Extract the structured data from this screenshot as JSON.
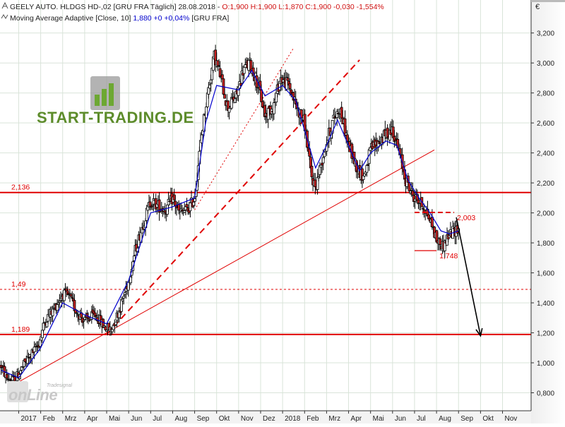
{
  "header": {
    "line1": "GEELY AUTO. HLDGS  HD-,02 [GRU FRA  Täglich] 28.08.2018 - ",
    "ohlc": "O:1,900 H:1,900 L:1,870 C:1,900 -0,030 -1,554%",
    "line2_prefix": "Moving Average Adaptive [Close, 10] ",
    "line2_value": "1,880 +0 +0,04%",
    "line2_suffix": " [GRU FRA]"
  },
  "brand": {
    "name": "START-TRADING.DE",
    "footer_main": "onLine",
    "footer_small": "Tradesignal"
  },
  "currency_symbol": "€",
  "colors": {
    "candle_up": "#ffffff",
    "candle_down": "#cc2222",
    "candle_outline": "#000000",
    "moving_average": "#0000cc",
    "level_line": "#e00000",
    "arrow": "#000000",
    "grid": "#d9e4d9",
    "brand_green": "#5d8c2b",
    "brand_dark": "#555555"
  },
  "chart_data": {
    "type": "candlestick",
    "instrument": "GEELY AUTO. HLDGS  HD-,02",
    "exchange": "GRU FRA",
    "interval": "Täglich",
    "y_axis": {
      "position": "right",
      "ticks": [
        0.8,
        1.0,
        1.2,
        1.4,
        1.6,
        1.8,
        2.0,
        2.2,
        2.4,
        2.6,
        2.8,
        3.0,
        3.2
      ],
      "tick_labels": [
        "0,800",
        "1,000",
        "1,200",
        "1,400",
        "1,600",
        "1,800",
        "2,000",
        "2,200",
        "2,400",
        "2,600",
        "2,800",
        "3,000",
        "3,200"
      ],
      "ylim": [
        0.68,
        3.42
      ]
    },
    "x_axis": {
      "labels": [
        {
          "text": "2017",
          "t": 0.0
        },
        {
          "text": "Feb",
          "t": 1.0
        },
        {
          "text": "Mrz",
          "t": 2.0
        },
        {
          "text": "Apr",
          "t": 3.0
        },
        {
          "text": "Mai",
          "t": 4.0
        },
        {
          "text": "Jun",
          "t": 5.0
        },
        {
          "text": "Jul",
          "t": 6.0
        },
        {
          "text": "Aug",
          "t": 7.0
        },
        {
          "text": "Sep",
          "t": 8.0
        },
        {
          "text": "Okt",
          "t": 9.0
        },
        {
          "text": "Nov",
          "t": 10.0
        },
        {
          "text": "Dez",
          "t": 11.0
        },
        {
          "text": "2018",
          "t": 12.0
        },
        {
          "text": "Feb",
          "t": 13.0
        },
        {
          "text": "Mrz",
          "t": 14.0
        },
        {
          "text": "Apr",
          "t": 15.0
        },
        {
          "text": "Mai",
          "t": 16.0
        },
        {
          "text": "Jun",
          "t": 17.0
        },
        {
          "text": "Jul",
          "t": 18.0
        },
        {
          "text": "Aug",
          "t": 19.0
        },
        {
          "text": "Sep",
          "t": 20.0
        },
        {
          "text": "Okt",
          "t": 21.0
        },
        {
          "text": "Nov",
          "t": 22.0
        }
      ],
      "xlim": [
        -0.85,
        23.3
      ]
    },
    "price_path": [
      [
        -0.8,
        0.98
      ],
      [
        -0.55,
        0.9
      ],
      [
        -0.2,
        0.88
      ],
      [
        0.3,
        1.0
      ],
      [
        0.9,
        1.12
      ],
      [
        1.2,
        1.28
      ],
      [
        1.6,
        1.36
      ],
      [
        2.0,
        1.46
      ],
      [
        2.3,
        1.44
      ],
      [
        2.6,
        1.35
      ],
      [
        3.0,
        1.28
      ],
      [
        3.5,
        1.32
      ],
      [
        3.9,
        1.24
      ],
      [
        4.2,
        1.22
      ],
      [
        4.6,
        1.36
      ],
      [
        5.0,
        1.55
      ],
      [
        5.3,
        1.75
      ],
      [
        5.6,
        1.9
      ],
      [
        6.0,
        2.08
      ],
      [
        6.3,
        2.05
      ],
      [
        6.7,
        2.02
      ],
      [
        7.0,
        2.1
      ],
      [
        7.3,
        2.0
      ],
      [
        7.7,
        2.02
      ],
      [
        8.0,
        2.1
      ],
      [
        8.3,
        2.5
      ],
      [
        8.6,
        2.8
      ],
      [
        8.9,
        3.05
      ],
      [
        9.2,
        2.9
      ],
      [
        9.5,
        2.7
      ],
      [
        9.9,
        2.78
      ],
      [
        10.2,
        2.95
      ],
      [
        10.5,
        3.0
      ],
      [
        10.9,
        2.85
      ],
      [
        11.2,
        2.65
      ],
      [
        11.6,
        2.72
      ],
      [
        11.9,
        2.9
      ],
      [
        12.3,
        2.85
      ],
      [
        12.6,
        2.72
      ],
      [
        13.0,
        2.6
      ],
      [
        13.3,
        2.25
      ],
      [
        13.5,
        2.17
      ],
      [
        13.9,
        2.42
      ],
      [
        14.3,
        2.62
      ],
      [
        14.6,
        2.7
      ],
      [
        15.0,
        2.45
      ],
      [
        15.4,
        2.3
      ],
      [
        15.7,
        2.24
      ],
      [
        16.0,
        2.42
      ],
      [
        16.4,
        2.48
      ],
      [
        16.7,
        2.52
      ],
      [
        17.0,
        2.56
      ],
      [
        17.3,
        2.4
      ],
      [
        17.6,
        2.22
      ],
      [
        17.9,
        2.12
      ],
      [
        18.2,
        2.08
      ],
      [
        18.5,
        2.02
      ],
      [
        18.8,
        1.92
      ],
      [
        19.0,
        1.82
      ],
      [
        19.3,
        1.78
      ],
      [
        19.5,
        1.84
      ],
      [
        19.8,
        1.88
      ],
      [
        20.0,
        1.9
      ]
    ],
    "moving_average": {
      "name": "Moving Average Adaptive [Close, 10]",
      "last_value": 1.88,
      "points": [
        [
          -0.8,
          0.95
        ],
        [
          0.0,
          0.9
        ],
        [
          1.0,
          1.1
        ],
        [
          2.0,
          1.4
        ],
        [
          3.0,
          1.32
        ],
        [
          4.0,
          1.26
        ],
        [
          5.0,
          1.55
        ],
        [
          6.0,
          2.0
        ],
        [
          7.0,
          2.04
        ],
        [
          8.0,
          2.1
        ],
        [
          8.5,
          2.6
        ],
        [
          9.0,
          2.85
        ],
        [
          10.0,
          2.82
        ],
        [
          10.6,
          2.95
        ],
        [
          11.2,
          2.78
        ],
        [
          12.0,
          2.85
        ],
        [
          12.6,
          2.75
        ],
        [
          13.0,
          2.55
        ],
        [
          13.5,
          2.3
        ],
        [
          14.0,
          2.45
        ],
        [
          14.5,
          2.62
        ],
        [
          15.0,
          2.45
        ],
        [
          15.5,
          2.28
        ],
        [
          16.0,
          2.4
        ],
        [
          16.7,
          2.48
        ],
        [
          17.2,
          2.45
        ],
        [
          17.7,
          2.22
        ],
        [
          18.2,
          2.1
        ],
        [
          18.7,
          2.0
        ],
        [
          19.2,
          1.88
        ],
        [
          19.6,
          1.86
        ],
        [
          20.0,
          1.88
        ]
      ]
    },
    "horizontal_levels": [
      {
        "label": "2,136",
        "value": 2.136,
        "style": "solid",
        "width": 2
      },
      {
        "label": "1,49",
        "value": 1.49,
        "style": "dotted",
        "width": 1
      },
      {
        "label": "1,189",
        "value": 1.189,
        "style": "solid",
        "width": 2
      }
    ],
    "segment_levels": [
      {
        "label": "2,003",
        "value": 2.003,
        "t_start": 18.0,
        "t_end": 19.8,
        "style": "dashed"
      },
      {
        "label": "1,748",
        "value": 1.748,
        "t_start": 18.0,
        "t_end": 19.0,
        "style": "solid"
      }
    ],
    "trendlines": [
      {
        "from": [
          -0.4,
          0.84
        ],
        "to": [
          18.9,
          2.42
        ],
        "style": "solid",
        "width": 1
      },
      {
        "from": [
          4.0,
          1.19
        ],
        "to": [
          15.5,
          3.02
        ],
        "style": "dashed",
        "width": 2
      },
      {
        "from": [
          8.0,
          2.02
        ],
        "to": [
          12.5,
          3.1
        ],
        "style": "dotted",
        "width": 1
      }
    ],
    "arrow": {
      "from": [
        19.9,
        1.97
      ],
      "to": [
        21.0,
        1.18
      ]
    },
    "last_bar": {
      "date": "28.08.2018",
      "open": 1.9,
      "high": 1.9,
      "low": 1.87,
      "close": 1.9,
      "change": -0.03,
      "change_pct": -1.554
    }
  }
}
